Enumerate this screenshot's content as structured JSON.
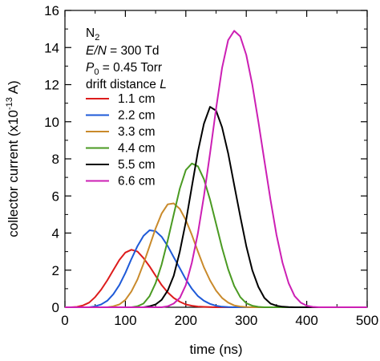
{
  "chart_data": {
    "type": "line",
    "xlabel": "time (ns)",
    "ylabel": "collector current (x10",
    "ylabel_exp": "-13",
    "ylabel_unit": " A)",
    "xlim": [
      0,
      500
    ],
    "ylim": [
      0,
      16
    ],
    "xticks": [
      0,
      100,
      200,
      300,
      400,
      500
    ],
    "yticks": [
      0,
      2,
      4,
      6,
      8,
      10,
      12,
      14,
      16
    ],
    "grid": false,
    "legend_position": "top-left",
    "annotations": {
      "gas": "N",
      "gas_sub": "2",
      "en_italic": "E/N",
      "en_value": " = 300 Td",
      "p_italic": "P",
      "p_sub": "0",
      "p_value": " = 0.45 Torr",
      "drift_text": "drift distance ",
      "drift_italic": "L"
    },
    "series": [
      {
        "name": "1.1 cm",
        "color": "#dd1c1c",
        "x": [
          10,
          20,
          30,
          40,
          50,
          60,
          70,
          80,
          90,
          100,
          110,
          120,
          130,
          140,
          150,
          160,
          170,
          180,
          190,
          200,
          210,
          220,
          230,
          240,
          250,
          260
        ],
        "y": [
          0.0,
          0.02,
          0.1,
          0.25,
          0.55,
          0.95,
          1.45,
          2.0,
          2.55,
          2.95,
          3.1,
          3.0,
          2.65,
          2.2,
          1.7,
          1.2,
          0.8,
          0.5,
          0.3,
          0.15,
          0.08,
          0.04,
          0.02,
          0.01,
          0.0,
          0.0
        ]
      },
      {
        "name": "2.2 cm",
        "color": "#1e5ad8",
        "x": [
          40,
          50,
          60,
          70,
          80,
          90,
          100,
          110,
          120,
          130,
          140,
          150,
          160,
          170,
          180,
          190,
          200,
          210,
          220,
          230,
          240,
          250,
          260,
          270,
          280
        ],
        "y": [
          0.0,
          0.05,
          0.15,
          0.35,
          0.7,
          1.2,
          1.85,
          2.6,
          3.3,
          3.85,
          4.15,
          4.1,
          3.8,
          3.3,
          2.7,
          2.1,
          1.5,
          1.0,
          0.6,
          0.35,
          0.18,
          0.08,
          0.03,
          0.01,
          0.0
        ]
      },
      {
        "name": "3.3 cm",
        "color": "#c98a2b",
        "x": [
          70,
          80,
          90,
          100,
          110,
          120,
          130,
          140,
          150,
          160,
          170,
          180,
          190,
          200,
          210,
          220,
          230,
          240,
          250,
          260,
          270,
          280,
          290,
          300,
          310
        ],
        "y": [
          0.0,
          0.05,
          0.15,
          0.4,
          0.85,
          1.5,
          2.35,
          3.3,
          4.25,
          5.05,
          5.55,
          5.6,
          5.3,
          4.7,
          3.9,
          3.0,
          2.15,
          1.45,
          0.9,
          0.5,
          0.25,
          0.1,
          0.04,
          0.01,
          0.0
        ]
      },
      {
        "name": "4.4 cm",
        "color": "#4a9a22",
        "x": [
          110,
          120,
          130,
          140,
          150,
          160,
          170,
          180,
          190,
          200,
          210,
          220,
          230,
          240,
          250,
          260,
          270,
          280,
          290,
          300,
          310,
          320,
          330
        ],
        "y": [
          0.0,
          0.05,
          0.2,
          0.6,
          1.3,
          2.3,
          3.6,
          5.0,
          6.4,
          7.4,
          7.75,
          7.6,
          6.9,
          5.8,
          4.5,
          3.2,
          2.05,
          1.15,
          0.55,
          0.22,
          0.08,
          0.02,
          0.0
        ]
      },
      {
        "name": "5.5 cm",
        "color": "#000000",
        "x": [
          130,
          140,
          150,
          160,
          170,
          180,
          190,
          200,
          210,
          220,
          230,
          240,
          250,
          260,
          270,
          280,
          290,
          300,
          310,
          320,
          330,
          340,
          350,
          360,
          370,
          380,
          390
        ],
        "y": [
          0.0,
          0.05,
          0.15,
          0.4,
          0.9,
          1.7,
          3.0,
          4.6,
          6.5,
          8.4,
          9.9,
          10.8,
          10.6,
          9.7,
          8.3,
          6.6,
          4.9,
          3.3,
          2.0,
          1.1,
          0.5,
          0.2,
          0.08,
          0.03,
          0.01,
          0.0,
          0.0
        ]
      },
      {
        "name": "6.6 cm",
        "color": "#cc1fb4",
        "x": [
          160,
          170,
          180,
          190,
          200,
          210,
          220,
          230,
          240,
          250,
          260,
          270,
          280,
          290,
          300,
          310,
          320,
          330,
          340,
          350,
          360,
          370,
          380,
          390,
          400,
          410,
          420,
          430
        ],
        "y": [
          0.0,
          0.05,
          0.2,
          0.5,
          1.2,
          2.4,
          4.0,
          6.0,
          8.3,
          10.7,
          12.9,
          14.4,
          14.9,
          14.6,
          13.6,
          12.0,
          10.0,
          7.9,
          5.8,
          3.9,
          2.4,
          1.3,
          0.6,
          0.25,
          0.08,
          0.02,
          0.0,
          0.0
        ]
      }
    ]
  }
}
